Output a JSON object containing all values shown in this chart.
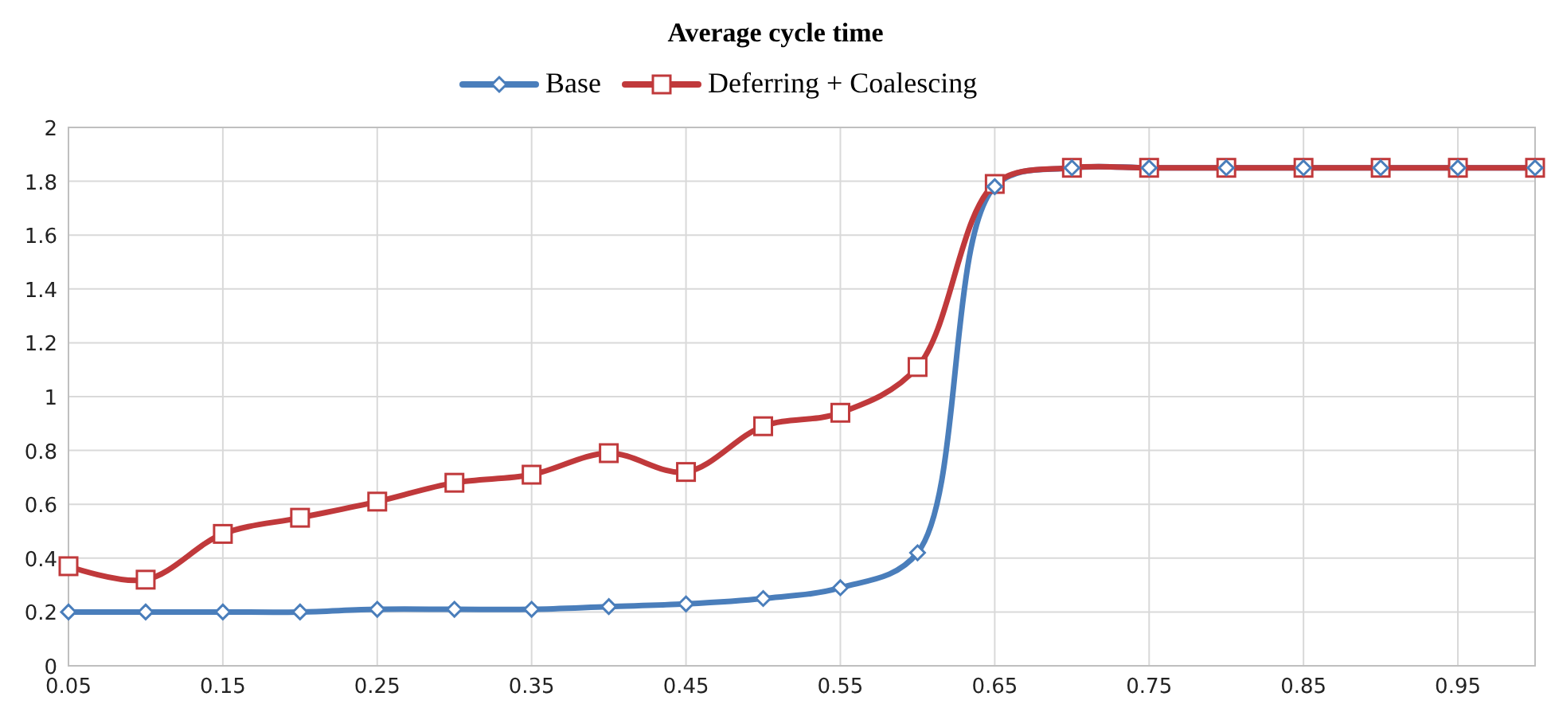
{
  "chart_data": {
    "type": "line",
    "title": "Average cycle time",
    "x": [
      0.05,
      0.1,
      0.15,
      0.2,
      0.25,
      0.3,
      0.35,
      0.4,
      0.45,
      0.5,
      0.55,
      0.6,
      0.65,
      0.7,
      0.75,
      0.8,
      0.85,
      0.9,
      0.95,
      1.0
    ],
    "series": [
      {
        "name": "Base",
        "color": "#4a7ebb",
        "marker": "diamond",
        "values": [
          0.2,
          0.2,
          0.2,
          0.2,
          0.21,
          0.21,
          0.21,
          0.22,
          0.23,
          0.25,
          0.29,
          0.42,
          1.78,
          1.85,
          1.85,
          1.85,
          1.85,
          1.85,
          1.85,
          1.85
        ]
      },
      {
        "name": "Deferring + Coalescing",
        "color": "#c0393b",
        "marker": "square",
        "values": [
          0.37,
          0.32,
          0.49,
          0.55,
          0.61,
          0.68,
          0.71,
          0.79,
          0.72,
          0.89,
          0.94,
          1.11,
          1.79,
          1.85,
          1.85,
          1.85,
          1.85,
          1.85,
          1.85,
          1.85
        ]
      }
    ],
    "xlim": [
      0.05,
      1.0
    ],
    "xticks": [
      0.05,
      0.15,
      0.25,
      0.35,
      0.45,
      0.55,
      0.65,
      0.75,
      0.85,
      0.95
    ],
    "ylim": [
      0,
      2
    ],
    "yticks": [
      0,
      0.2,
      0.4,
      0.6,
      0.8,
      1,
      1.2,
      1.4,
      1.6,
      1.8,
      2
    ],
    "grid": true,
    "legend": "top",
    "line_style": "solid"
  }
}
